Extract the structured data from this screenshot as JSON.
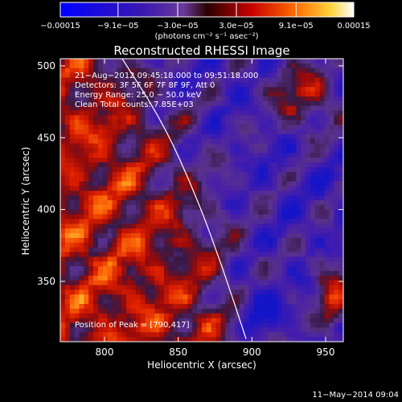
{
  "colorbar": {
    "ticks": [
      "−0.00015",
      "−9.1e−05",
      "−3.0e−05",
      "3.0e−05",
      "9.1e−05",
      "0.00015"
    ],
    "tick_values": [
      -0.00015,
      -9.1e-05,
      -3e-05,
      3e-05,
      9.1e-05,
      0.00015
    ],
    "range": [
      -0.00015,
      0.00015
    ],
    "units": "(photons cm⁻² s⁻¹ asec⁻²)"
  },
  "chart_data": {
    "type": "heatmap",
    "title": "Reconstructed RHESSI Image",
    "xlabel": "Heliocentric X (arcsec)",
    "ylabel": "Heliocentric Y (arcsec)",
    "xlim": [
      770,
      962
    ],
    "ylim": [
      308,
      505
    ],
    "xticks": [
      800,
      850,
      900,
      950
    ],
    "yticks": [
      350,
      400,
      450,
      500
    ],
    "limb_curve": [
      [
        812,
        505
      ],
      [
        840,
        460
      ],
      [
        862,
        410
      ],
      [
        880,
        360
      ],
      [
        896,
        310
      ]
    ],
    "peak": [
      790,
      417
    ],
    "annotations": [
      "21−Aug−2012 09:45:18.000 to 09:51:18.000",
      "Detectors: 3F 5F 6F 7F 8F 9F, Att 0",
      "Energy Range: 25.0 − 50.0 keV",
      "Clean     Total counts: 7.85E+03",
      "Position of Peak = [790,417]"
    ]
  },
  "footer": {
    "timestamp": "11−May−2014 09:04"
  }
}
